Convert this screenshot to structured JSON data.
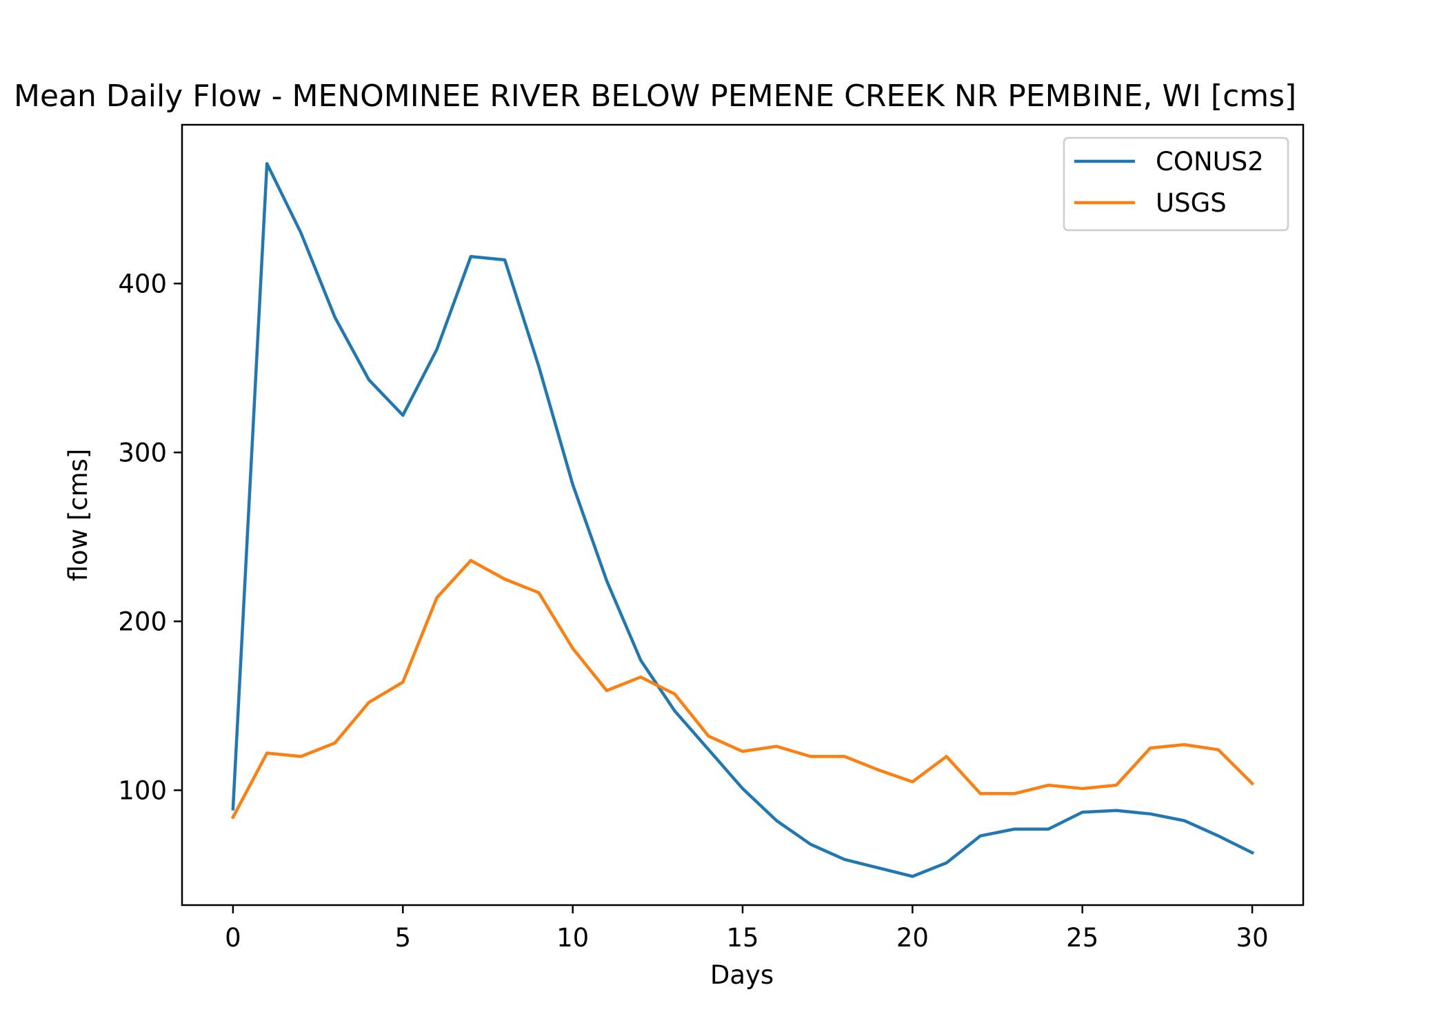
{
  "chart_data": {
    "type": "line",
    "title": "Mean Daily Flow - MENOMINEE RIVER BELOW PEMENE CREEK NR PEMBINE, WI [cms]",
    "xlabel": "Days",
    "ylabel": "flow [cms]",
    "xlim": [
      -1.5,
      31.5
    ],
    "ylim": [
      32,
      494
    ],
    "xticks": [
      0,
      5,
      10,
      15,
      20,
      25,
      30
    ],
    "yticks": [
      100,
      200,
      300,
      400
    ],
    "grid": false,
    "legend": "top-right",
    "x": [
      0,
      1,
      2,
      3,
      4,
      5,
      6,
      7,
      8,
      9,
      10,
      11,
      12,
      13,
      14,
      15,
      16,
      17,
      18,
      19,
      20,
      21,
      22,
      23,
      24,
      25,
      26,
      27,
      28,
      29,
      30
    ],
    "series": [
      {
        "name": "CONUS2",
        "color": "#1f77b4",
        "values": [
          89,
          471,
          430,
          380,
          343,
          322,
          361,
          416,
          414,
          351,
          281,
          224,
          177,
          147,
          124,
          101,
          82,
          68,
          59,
          54,
          49,
          57,
          73,
          77,
          77,
          87,
          88,
          86,
          82,
          73,
          63
        ]
      },
      {
        "name": "USGS",
        "color": "#ff7f0e",
        "values": [
          84,
          122,
          120,
          128,
          152,
          164,
          214,
          236,
          225,
          217,
          184,
          159,
          167,
          157,
          132,
          123,
          126,
          120,
          120,
          112,
          105,
          120,
          98,
          98,
          103,
          101,
          103,
          125,
          127,
          124,
          104
        ]
      }
    ]
  }
}
